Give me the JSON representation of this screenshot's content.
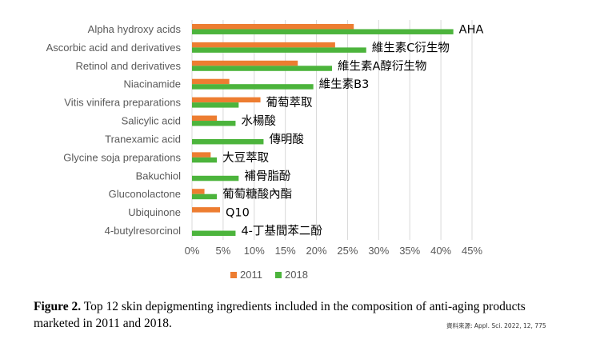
{
  "chart_data": {
    "type": "bar",
    "orientation": "horizontal",
    "categories": [
      "Alpha hydroxy acids",
      "Ascorbic acid and derivatives",
      "Retinol and derivatives",
      "Niacinamide",
      "Vitis vinifera preparations",
      "Salicylic acid",
      "Tranexamic acid",
      "Glycine soja preparations",
      "Bakuchiol",
      "Gluconolactone",
      "Ubiquinone",
      "4-butylresorcinol"
    ],
    "annotations": [
      "AHA",
      "維生素C衍生物",
      "維生素A醇衍生物",
      "維生素B3",
      "葡萄萃取",
      "水楊酸",
      "傳明酸",
      "大豆萃取",
      "補骨脂酚",
      "葡萄糖酸內酯",
      "Q10",
      "4-丁基間苯二酚"
    ],
    "series": [
      {
        "name": "2011",
        "color": "#ED7D31",
        "values": [
          26,
          23,
          17,
          6,
          11,
          4,
          0,
          3,
          0,
          2,
          4.5,
          0
        ]
      },
      {
        "name": "2018",
        "color": "#4CB43C",
        "values": [
          42,
          28,
          22.5,
          19.5,
          7.5,
          7,
          11.5,
          4,
          7.5,
          4,
          0,
          7
        ]
      }
    ],
    "xlim": [
      0,
      45
    ],
    "xticks": [
      "0%",
      "5%",
      "10%",
      "15%",
      "20%",
      "25%",
      "30%",
      "35%",
      "40%",
      "45%"
    ],
    "xlabel": "",
    "ylabel": "",
    "grid": true,
    "legend": "bottom"
  },
  "caption": {
    "label": "Figure 2.",
    "text": " Top 12 skin depigmenting ingredients included in the composition of anti-aging products marketed in 2011 and 2018."
  },
  "source": "資料來源: Appl. Sci. 2022, 12, 775"
}
